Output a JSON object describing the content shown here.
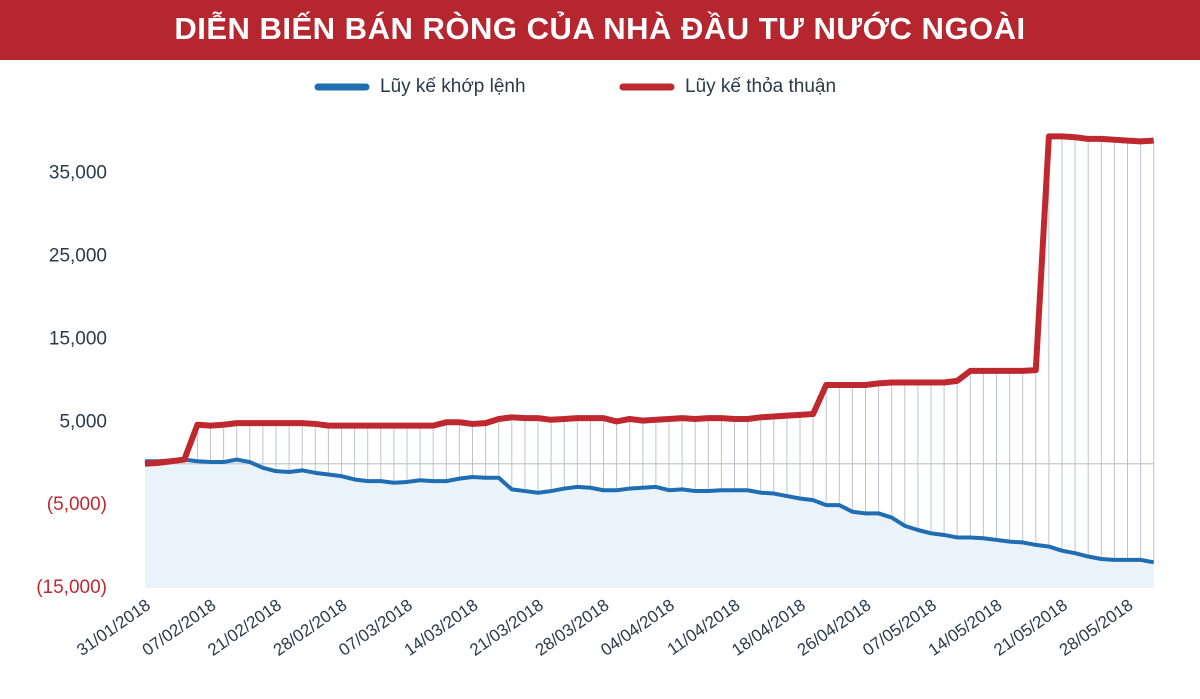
{
  "chart_data": {
    "type": "line",
    "title": "DIỄN BIẾN BÁN RÒNG CỦA NHÀ ĐẦU TƯ NƯỚC NGOÀI",
    "categories": [
      "31/01/2018",
      null,
      null,
      null,
      null,
      "07/02/2018",
      null,
      null,
      null,
      null,
      "21/02/2018",
      null,
      null,
      null,
      null,
      "28/02/2018",
      null,
      null,
      null,
      null,
      "07/03/2018",
      null,
      null,
      null,
      null,
      "14/03/2018",
      null,
      null,
      null,
      null,
      "21/03/2018",
      null,
      null,
      null,
      null,
      "28/03/2018",
      null,
      null,
      null,
      null,
      "04/04/2018",
      null,
      null,
      null,
      null,
      "11/04/2018",
      null,
      null,
      null,
      null,
      "18/04/2018",
      null,
      null,
      null,
      null,
      "26/04/2018",
      null,
      null,
      null,
      null,
      "07/05/2018",
      null,
      null,
      null,
      null,
      "14/05/2018",
      null,
      null,
      null,
      null,
      "21/05/2018",
      null,
      null,
      null,
      null,
      "28/05/2018",
      null,
      null
    ],
    "series": [
      {
        "name": "Lũy kế khớp lệnh",
        "color": "#1f6db3",
        "values": [
          300,
          300,
          400,
          500,
          300,
          200,
          200,
          500,
          200,
          -500,
          -900,
          -1000,
          -800,
          -1100,
          -1300,
          -1500,
          -1900,
          -2100,
          -2100,
          -2300,
          -2200,
          -2000,
          -2100,
          -2100,
          -1800,
          -1600,
          -1700,
          -1700,
          -3100,
          -3300,
          -3500,
          -3300,
          -3000,
          -2800,
          -2900,
          -3200,
          -3200,
          -3000,
          -2900,
          -2800,
          -3200,
          -3100,
          -3300,
          -3300,
          -3200,
          -3200,
          -3200,
          -3500,
          -3600,
          -3900,
          -4200,
          -4400,
          -5000,
          -5000,
          -5800,
          -6000,
          -6000,
          -6500,
          -7500,
          -8000,
          -8400,
          -8600,
          -8900,
          -8900,
          -9000,
          -9200,
          -9400,
          -9500,
          -9800,
          -10000,
          -10500,
          -10800,
          -11200,
          -11500,
          -11600,
          -11600,
          -11600,
          -11900
        ]
      },
      {
        "name": "Lũy kế thỏa thuận",
        "color": "#c0282f",
        "values": [
          0,
          100,
          300,
          500,
          4700,
          4600,
          4700,
          4900,
          4900,
          4900,
          4900,
          4900,
          4900,
          4800,
          4600,
          4600,
          4600,
          4600,
          4600,
          4600,
          4600,
          4600,
          4600,
          5000,
          5000,
          4800,
          4900,
          5400,
          5600,
          5500,
          5500,
          5300,
          5400,
          5500,
          5500,
          5500,
          5100,
          5400,
          5200,
          5300,
          5400,
          5500,
          5400,
          5500,
          5500,
          5400,
          5400,
          5600,
          5700,
          5800,
          5900,
          6000,
          9500,
          9500,
          9500,
          9500,
          9700,
          9800,
          9800,
          9800,
          9800,
          9800,
          10000,
          11200,
          11200,
          11200,
          11200,
          11200,
          11300,
          39500,
          39500,
          39400,
          39200,
          39200,
          39100,
          39000,
          38900,
          39000
        ]
      }
    ],
    "ylim": [
      -15000,
      41000
    ],
    "yticks": [
      {
        "value": 35000,
        "label": "35,000"
      },
      {
        "value": 25000,
        "label": "25,000"
      },
      {
        "value": 15000,
        "label": "15,000"
      },
      {
        "value": 5000,
        "label": "5,000"
      },
      {
        "value": -5000,
        "label": "(5,000)"
      },
      {
        "value": -15000,
        "label": "(15,000)"
      }
    ],
    "negative_tick_color": "#c0282f",
    "title_background": "#b5262e",
    "legend": "top"
  }
}
